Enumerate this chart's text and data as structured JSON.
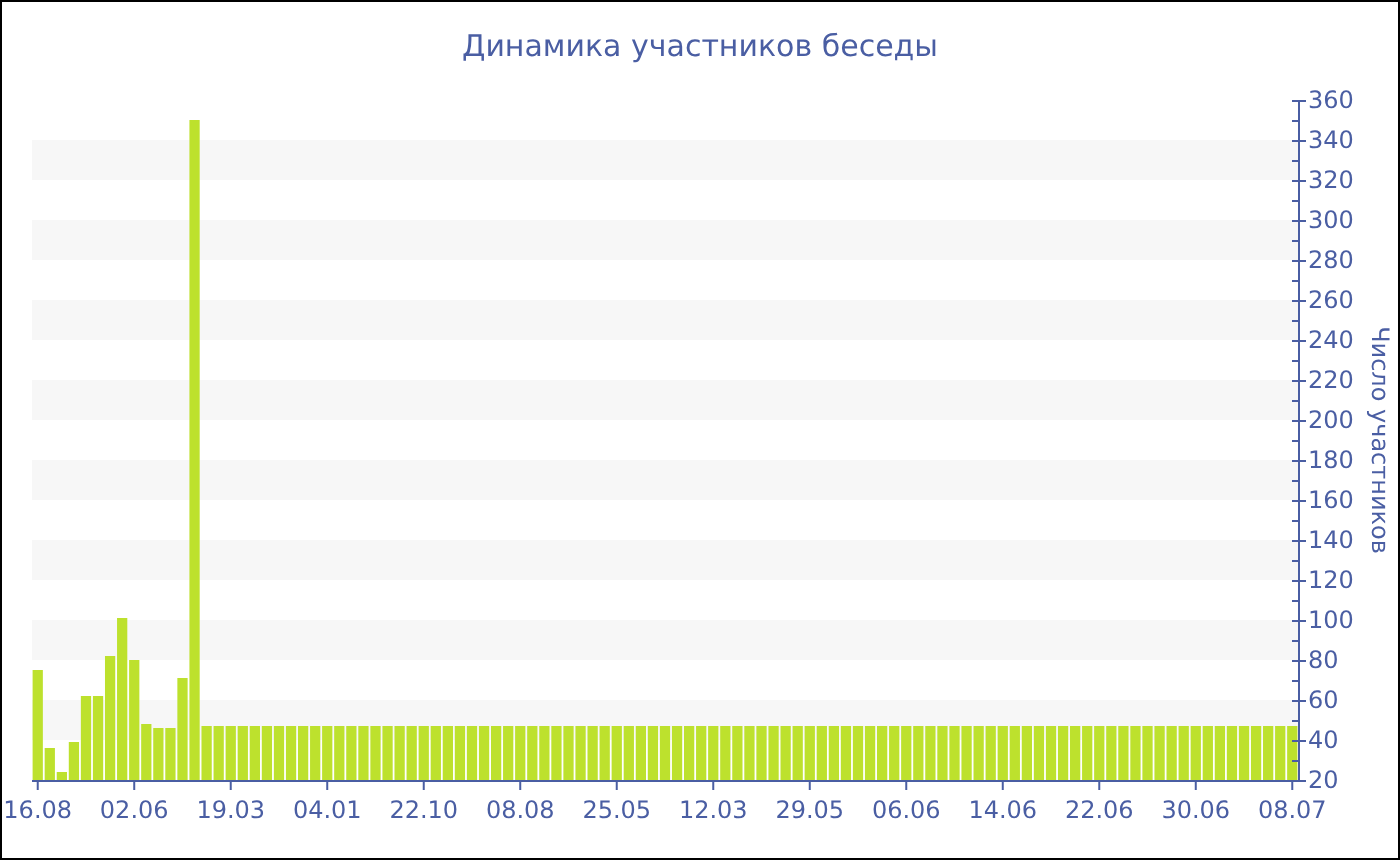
{
  "chart_data": {
    "type": "bar",
    "title": "Динамика участников беседы",
    "ylabel": "Число участников",
    "categories": [
      "16.08",
      null,
      null,
      null,
      null,
      null,
      null,
      null,
      "02.06",
      null,
      null,
      null,
      null,
      null,
      null,
      null,
      "19.03",
      null,
      null,
      null,
      null,
      null,
      null,
      null,
      "04.01",
      null,
      null,
      null,
      null,
      null,
      null,
      null,
      "22.10",
      null,
      null,
      null,
      null,
      null,
      null,
      null,
      "08.08",
      null,
      null,
      null,
      null,
      null,
      null,
      null,
      "25.05",
      null,
      null,
      null,
      null,
      null,
      null,
      null,
      "12.03",
      null,
      null,
      null,
      null,
      null,
      null,
      null,
      "29.05",
      null,
      null,
      null,
      null,
      null,
      null,
      null,
      "06.06",
      null,
      null,
      null,
      null,
      null,
      null,
      null,
      "14.06",
      null,
      null,
      null,
      null,
      null,
      null,
      null,
      "22.06",
      null,
      null,
      null,
      null,
      null,
      null,
      null,
      "30.06",
      null,
      null,
      null,
      null,
      null,
      null,
      null,
      "08.07"
    ],
    "values": [
      75,
      36,
      24,
      39,
      62,
      62,
      82,
      101,
      80,
      48,
      46,
      46,
      71,
      350,
      47,
      47,
      47,
      47,
      47,
      47,
      47,
      47,
      47,
      47,
      47,
      47,
      47,
      47,
      47,
      47,
      47,
      47,
      47,
      47,
      47,
      47,
      47,
      47,
      47,
      47,
      47,
      47,
      47,
      47,
      47,
      47,
      47,
      47,
      47,
      47,
      47,
      47,
      47,
      47,
      47,
      47,
      47,
      47,
      47,
      47,
      47,
      47,
      47,
      47,
      47,
      47,
      47,
      47,
      47,
      47,
      47,
      47,
      47,
      47,
      47,
      47,
      47,
      47,
      47,
      47,
      47,
      47,
      47,
      47,
      47,
      47,
      47,
      47,
      47,
      47,
      47,
      47,
      47,
      47,
      47,
      47,
      47,
      47,
      47,
      47,
      47,
      47,
      47,
      47,
      47
    ],
    "color": "#bde12d",
    "ylim": [
      20,
      360
    ],
    "yticks": [
      20,
      {
        "value": 30,
        "label": null
      },
      40,
      {
        "value": 50,
        "label": null
      },
      60,
      {
        "value": 70,
        "label": null
      },
      80,
      {
        "value": 90,
        "label": null
      },
      100,
      {
        "value": 110,
        "label": null
      },
      120,
      {
        "value": 130,
        "label": null
      },
      140,
      {
        "value": 150,
        "label": null
      },
      160,
      {
        "value": 170,
        "label": null
      },
      180,
      {
        "value": 190,
        "label": null
      },
      200,
      {
        "value": 210,
        "label": null
      },
      220,
      {
        "value": 230,
        "label": null
      },
      240,
      {
        "value": 250,
        "label": null
      },
      260,
      {
        "value": 270,
        "label": null
      },
      280,
      {
        "value": 290,
        "label": null
      },
      300,
      {
        "value": 310,
        "label": null
      },
      320,
      {
        "value": 330,
        "label": null
      },
      340,
      {
        "value": 350,
        "label": null
      },
      360
    ],
    "bands": [
      {
        "axis": "y",
        "from": 40,
        "to": 60,
        "color": "#f7f7f7"
      },
      {
        "axis": "y",
        "from": 80,
        "to": 100,
        "color": "#f7f7f7"
      },
      {
        "axis": "y",
        "from": 120,
        "to": 140,
        "color": "#f7f7f7"
      },
      {
        "axis": "y",
        "from": 160,
        "to": 180,
        "color": "#f7f7f7"
      },
      {
        "axis": "y",
        "from": 200,
        "to": 220,
        "color": "#f7f7f7"
      },
      {
        "axis": "y",
        "from": 240,
        "to": 260,
        "color": "#f7f7f7"
      },
      {
        "axis": "y",
        "from": 280,
        "to": 300,
        "color": "#f7f7f7"
      },
      {
        "axis": "y",
        "from": 320,
        "to": 340,
        "color": "#f7f7f7"
      }
    ]
  }
}
